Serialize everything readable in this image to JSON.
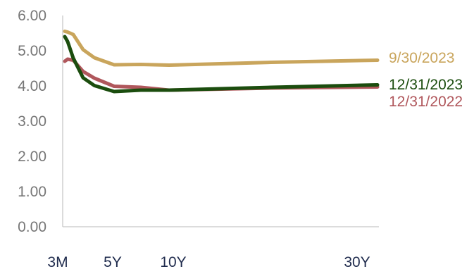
{
  "chart_data": {
    "type": "line",
    "title": "",
    "xlabel": "",
    "ylabel": "",
    "ylim": [
      0,
      6
    ],
    "y_ticks": [
      "0.00",
      "1.00",
      "2.00",
      "3.00",
      "4.00",
      "5.00",
      "6.00"
    ],
    "x_ticks": [
      "3M",
      "5Y",
      "10Y",
      "30Y"
    ],
    "x_years": [
      0.25,
      0.5,
      1,
      2,
      3,
      5,
      7,
      10,
      20,
      30
    ],
    "grid": false,
    "legend": "right-end labels",
    "series": [
      {
        "name": "9/30/2023",
        "color": "#c9a55c",
        "values": [
          5.55,
          5.53,
          5.46,
          5.03,
          4.8,
          4.6,
          4.61,
          4.59,
          4.67,
          4.73
        ]
      },
      {
        "name": "12/31/2023",
        "color": "#1b4d0e",
        "values": [
          5.4,
          5.26,
          4.79,
          4.23,
          4.01,
          3.84,
          3.88,
          3.88,
          3.96,
          4.03
        ]
      },
      {
        "name": "12/31/2022",
        "color": "#b0575c",
        "values": [
          4.7,
          4.76,
          4.73,
          4.41,
          4.22,
          3.99,
          3.96,
          3.88,
          3.94,
          3.97
        ]
      }
    ]
  }
}
